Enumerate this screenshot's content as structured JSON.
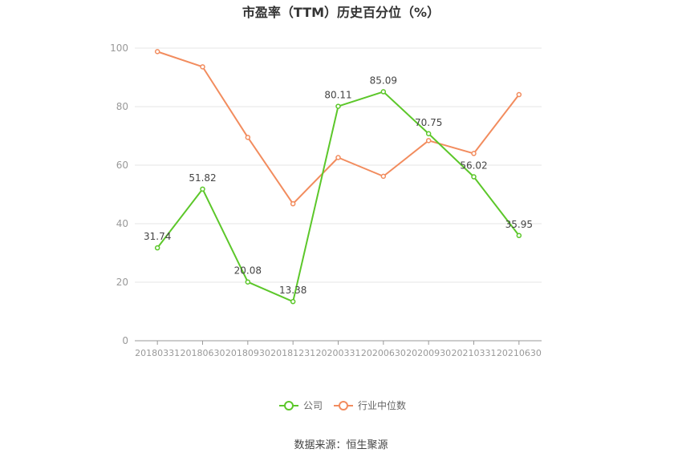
{
  "chart_data": {
    "type": "line",
    "title": "市盈率（TTM）历史百分位（%）",
    "categories": [
      "20180331",
      "20180630",
      "20180930",
      "20181231",
      "20200331",
      "20200630",
      "20200930",
      "20210331",
      "20210630"
    ],
    "ylim": [
      0,
      100
    ],
    "yticks": [
      "0",
      "20",
      "40",
      "60",
      "80",
      "100"
    ],
    "grid": true,
    "legend_position": "bottom",
    "series": [
      {
        "name": "公司",
        "color": "#5cc72a",
        "show_labels": true,
        "values": [
          31.74,
          51.82,
          20.08,
          13.38,
          80.11,
          85.09,
          70.75,
          56.02,
          35.95
        ],
        "labels": [
          "31.74",
          "51.82",
          "20.08",
          "13.38",
          "80.11",
          "85.09",
          "70.75",
          "56.02",
          "35.95"
        ]
      },
      {
        "name": "行业中位数",
        "color": "#f28c5e",
        "show_labels": false,
        "values": [
          98.8,
          93.6,
          69.5,
          46.8,
          62.6,
          56.2,
          68.4,
          64.0,
          84.1
        ]
      }
    ]
  },
  "source_text": "数据来源：恒生聚源"
}
